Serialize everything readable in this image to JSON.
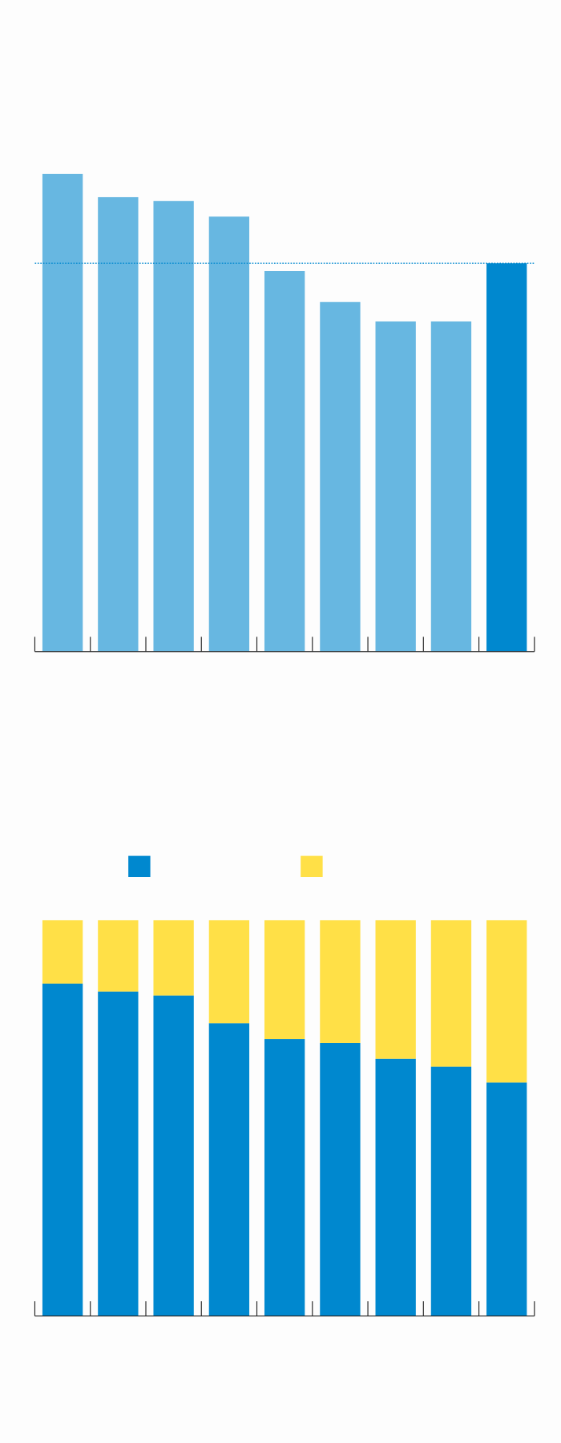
{
  "chart_data": [
    {
      "type": "bar",
      "categories": [
        null,
        null,
        null,
        null,
        null,
        null,
        null,
        null,
        null
      ],
      "values": [
        123,
        117,
        116,
        112,
        98,
        90,
        85,
        85,
        100
      ],
      "colors": [
        "#67b7e1",
        "#67b7e1",
        "#67b7e1",
        "#67b7e1",
        "#67b7e1",
        "#67b7e1",
        "#67b7e1",
        "#67b7e1",
        "#0088cf"
      ],
      "ylim": [
        0,
        130
      ],
      "reference_line": 100,
      "reference_color": "#0088cf"
    },
    {
      "type": "bar",
      "stacked": true,
      "categories": [
        null,
        null,
        null,
        null,
        null,
        null,
        null,
        null,
        null
      ],
      "series": [
        {
          "color": "#0088cf",
          "values": [
            84,
            82,
            81,
            74,
            70,
            69,
            65,
            63,
            59
          ]
        },
        {
          "color": "#ffe047",
          "values": [
            16,
            18,
            19,
            26,
            30,
            31,
            35,
            37,
            41
          ]
        }
      ],
      "ylim": [
        0,
        100
      ],
      "legend": true
    }
  ]
}
